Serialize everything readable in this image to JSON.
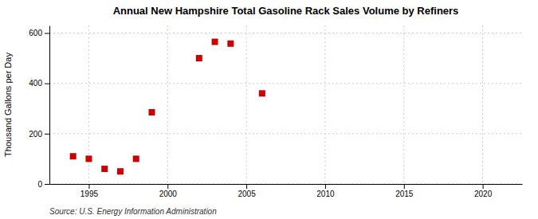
{
  "chart_data": {
    "type": "scatter",
    "title": "Annual New Hampshire Total Gasoline Rack Sales Volume by Refiners",
    "ylabel": "Thousand Gallons per Day",
    "source": "Source: U.S. Energy Information Administration",
    "x": [
      1994,
      1995,
      1996,
      1997,
      1998,
      1999,
      2002,
      2003,
      2004,
      2006
    ],
    "values": [
      110,
      100,
      60,
      50,
      100,
      285,
      500,
      565,
      558,
      360
    ],
    "color": "#cc0000",
    "marker": "square",
    "xlim": [
      1992.5,
      2022.5
    ],
    "ylim": [
      0,
      630
    ],
    "xticks": [
      1995,
      2000,
      2005,
      2010,
      2015,
      2020
    ],
    "yticks": [
      0,
      200,
      400,
      600
    ],
    "grid": true
  }
}
